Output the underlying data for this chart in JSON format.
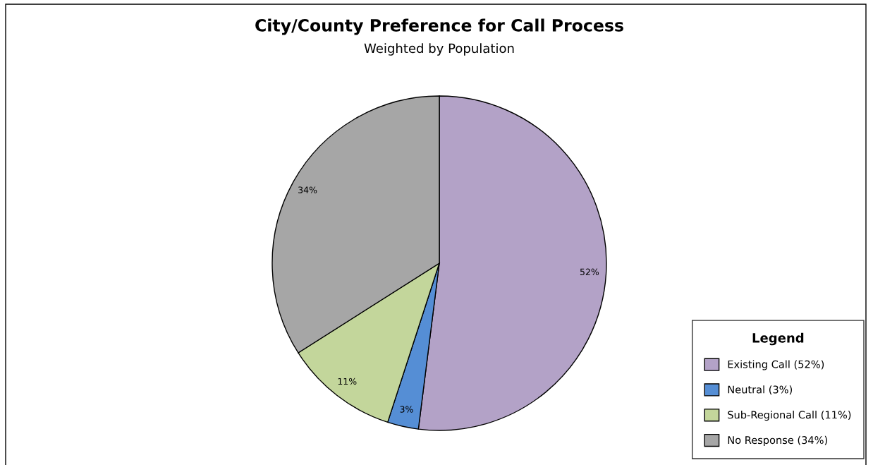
{
  "chart_data": {
    "type": "pie",
    "title": "City/County Preference for Call Process",
    "subtitle": "Weighted by Population",
    "categories": [
      "Existing Call (52%)",
      "Neutral (3%)",
      "Sub-Regional Call (11%)",
      "No Response (34%)"
    ],
    "values": [
      52,
      3,
      11,
      34
    ],
    "colors": [
      "#b3a2c7",
      "#558ed5",
      "#c3d69b",
      "#a6a6a6"
    ],
    "value_labels": [
      "52%",
      "3%",
      "11%",
      "34%"
    ],
    "legend": "bottom right",
    "legend_title": "Legend"
  }
}
